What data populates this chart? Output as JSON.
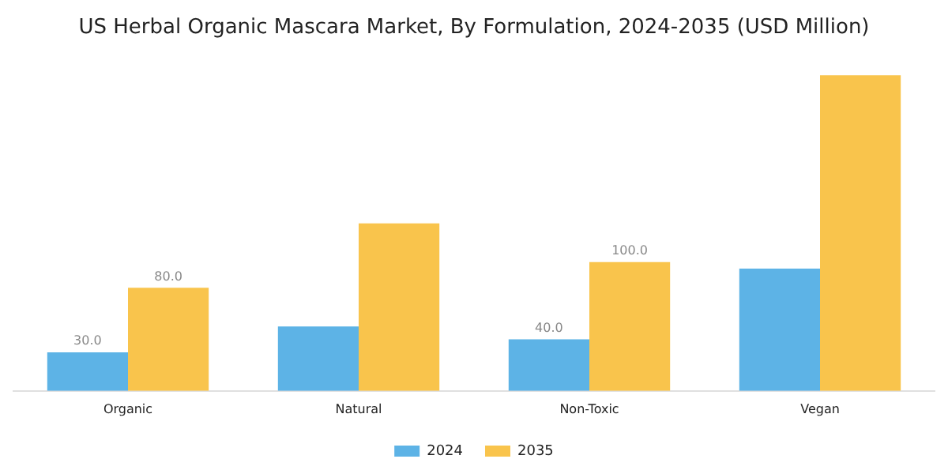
{
  "chart_data": {
    "type": "bar",
    "title": "US Herbal Organic Mascara Market, By Formulation, 2024-2035 (USD Million)",
    "categories": [
      "Organic",
      "Natural",
      "Non-Toxic",
      "Vegan"
    ],
    "series": [
      {
        "name": "2024",
        "color": "#5db3e6",
        "values": [
          30,
          50,
          40,
          95
        ],
        "value_labels": [
          "30.0",
          null,
          "40.0",
          null
        ]
      },
      {
        "name": "2035",
        "color": "#f9c44c",
        "values": [
          80,
          130,
          100,
          245
        ],
        "value_labels": [
          "80.0",
          null,
          "100.0",
          null
        ]
      }
    ],
    "legend": "bottom",
    "grid": false
  }
}
